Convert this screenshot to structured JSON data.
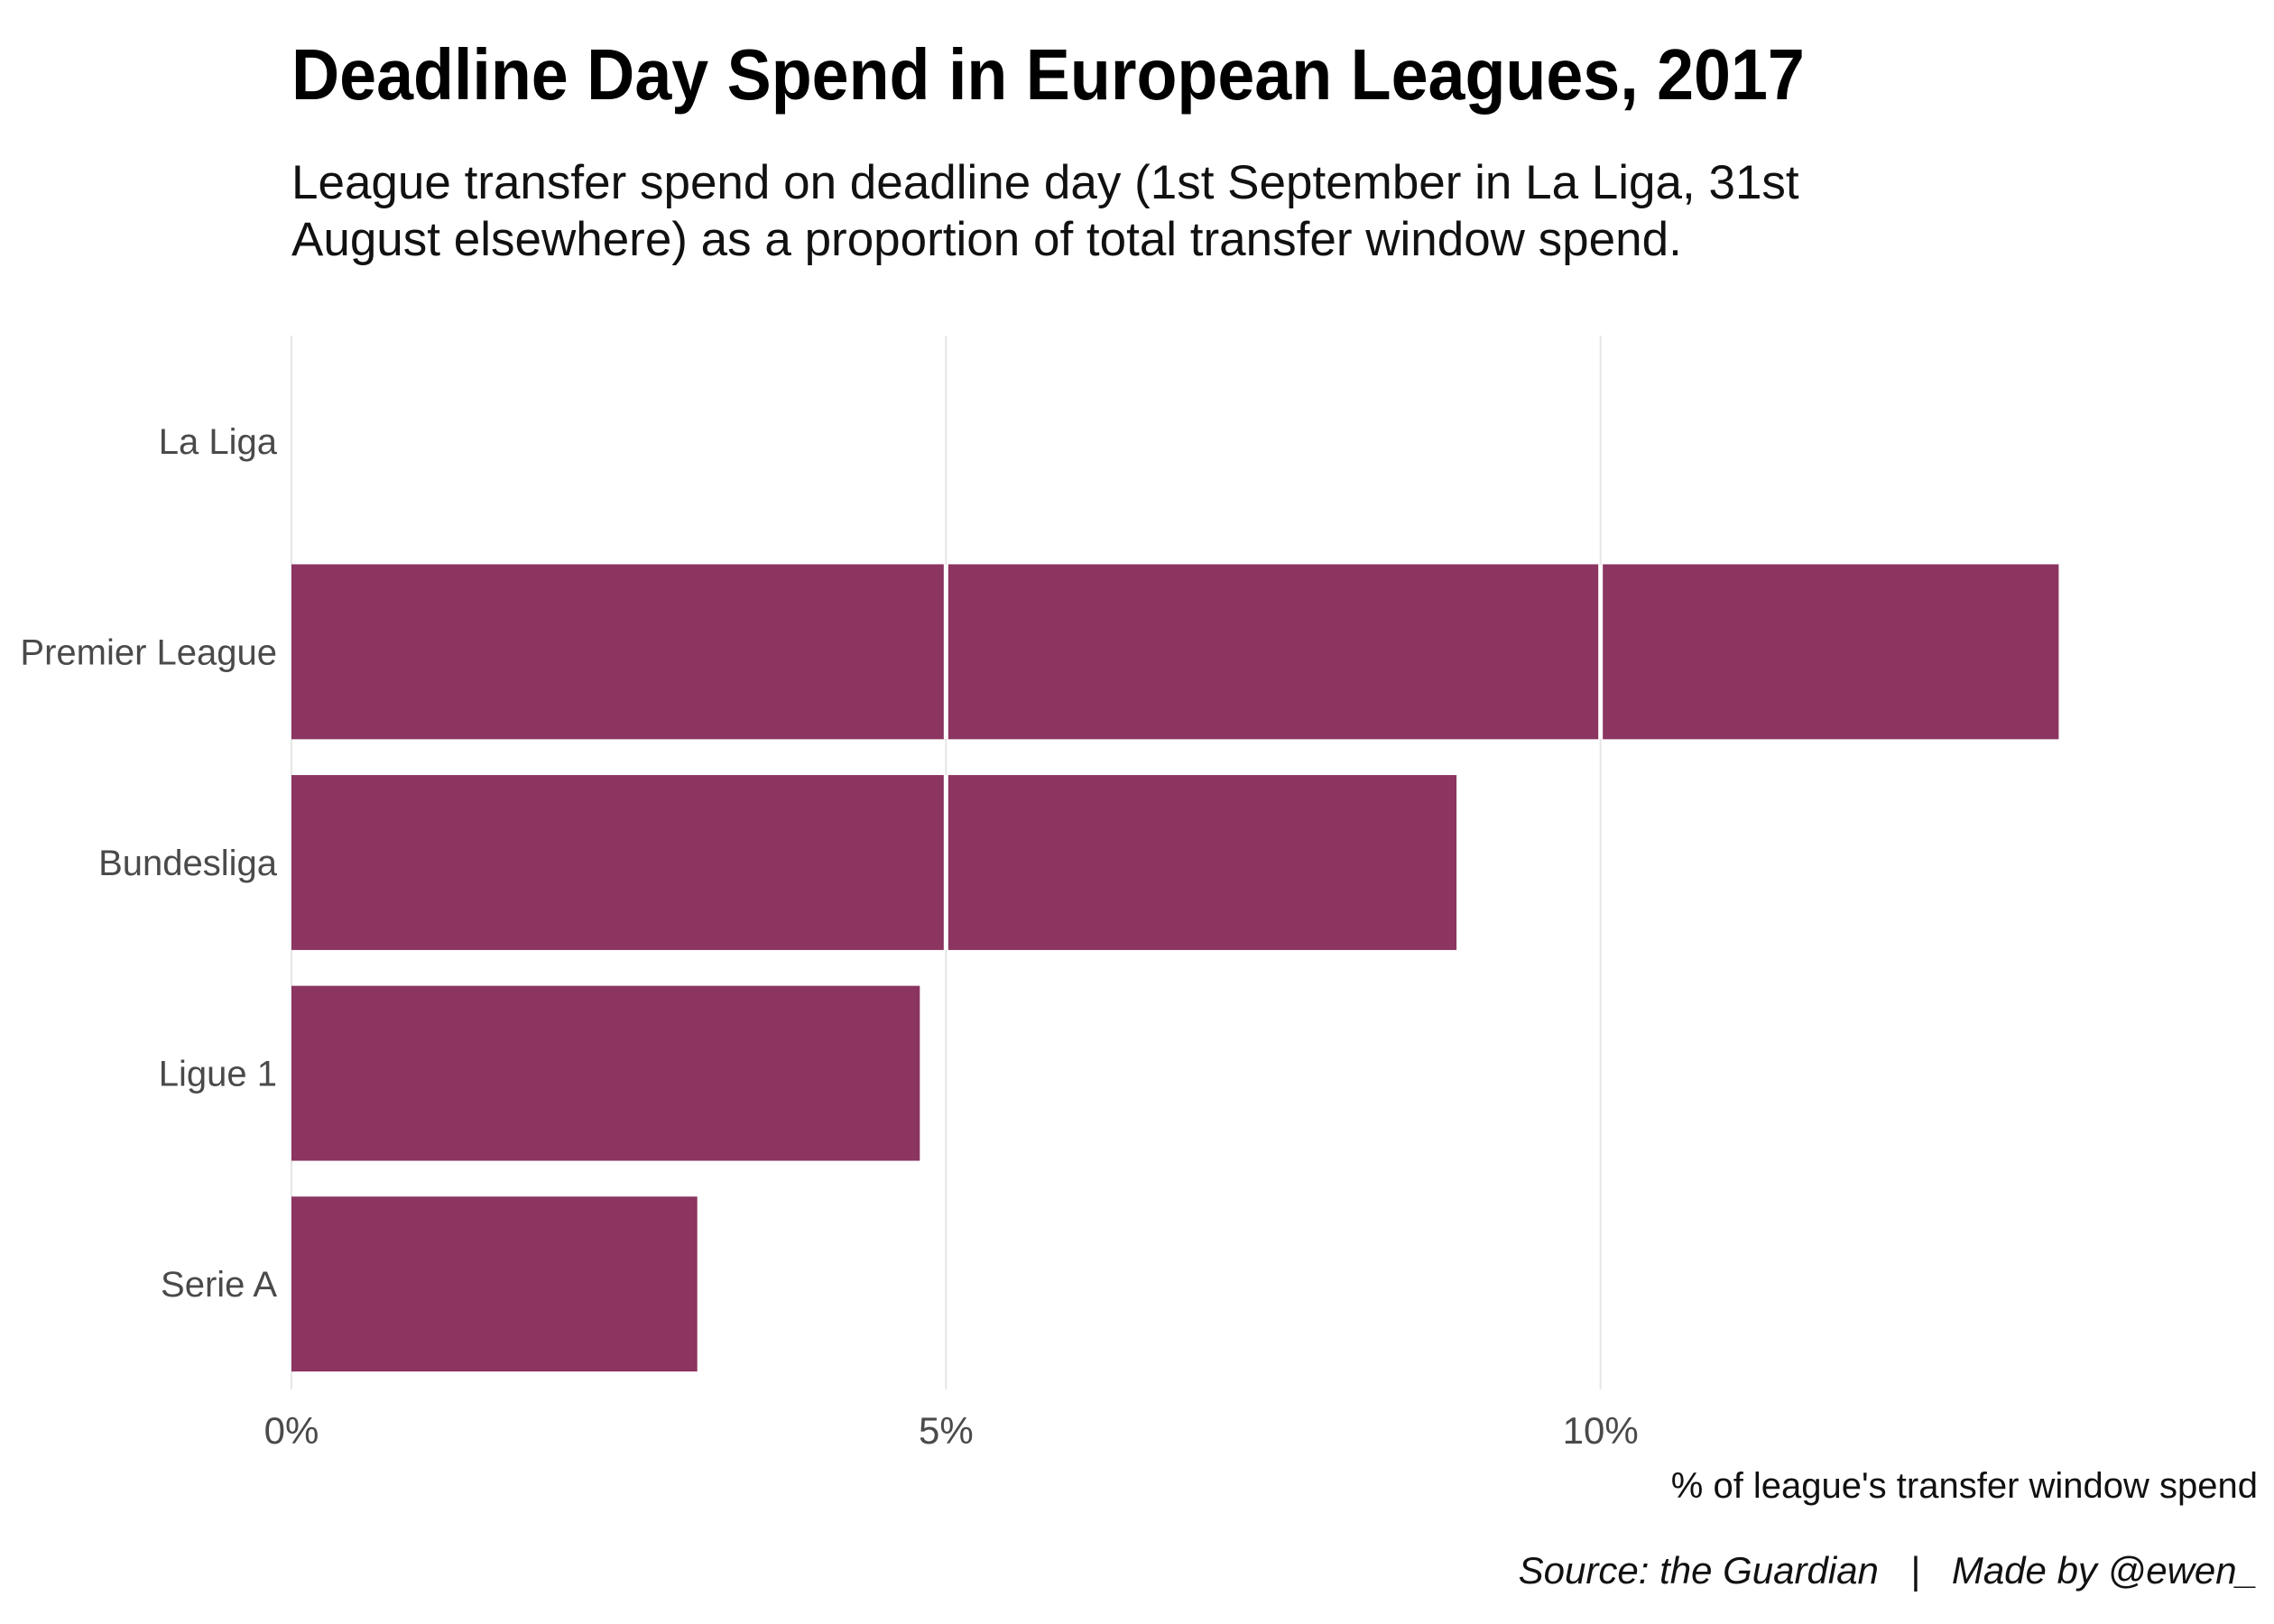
{
  "chart_data": {
    "type": "bar",
    "orientation": "horizontal",
    "title": "Deadline Day Spend in European Leagues, 2017",
    "subtitle_lines": [
      "League transfer spend on deadline day (1st September in La Liga, 31st",
      "August elsewhere) as a proportion of total transfer window spend."
    ],
    "categories": [
      "La Liga",
      "Premier League",
      "Bundesliga",
      "Ligue 1",
      "Serie A"
    ],
    "values": [
      0,
      13.5,
      8.9,
      4.8,
      3.1
    ],
    "xlabel": "% of league's transfer window spend",
    "ylabel": "",
    "xlim": [
      0,
      15
    ],
    "ticks": [
      0,
      5,
      10
    ],
    "tick_labels": [
      "0%",
      "5%",
      "10%"
    ],
    "grid": true,
    "legend": "none",
    "bar_color": "#8b3560",
    "caption": "Source: the Guardian   |   Made by @ewen_"
  }
}
